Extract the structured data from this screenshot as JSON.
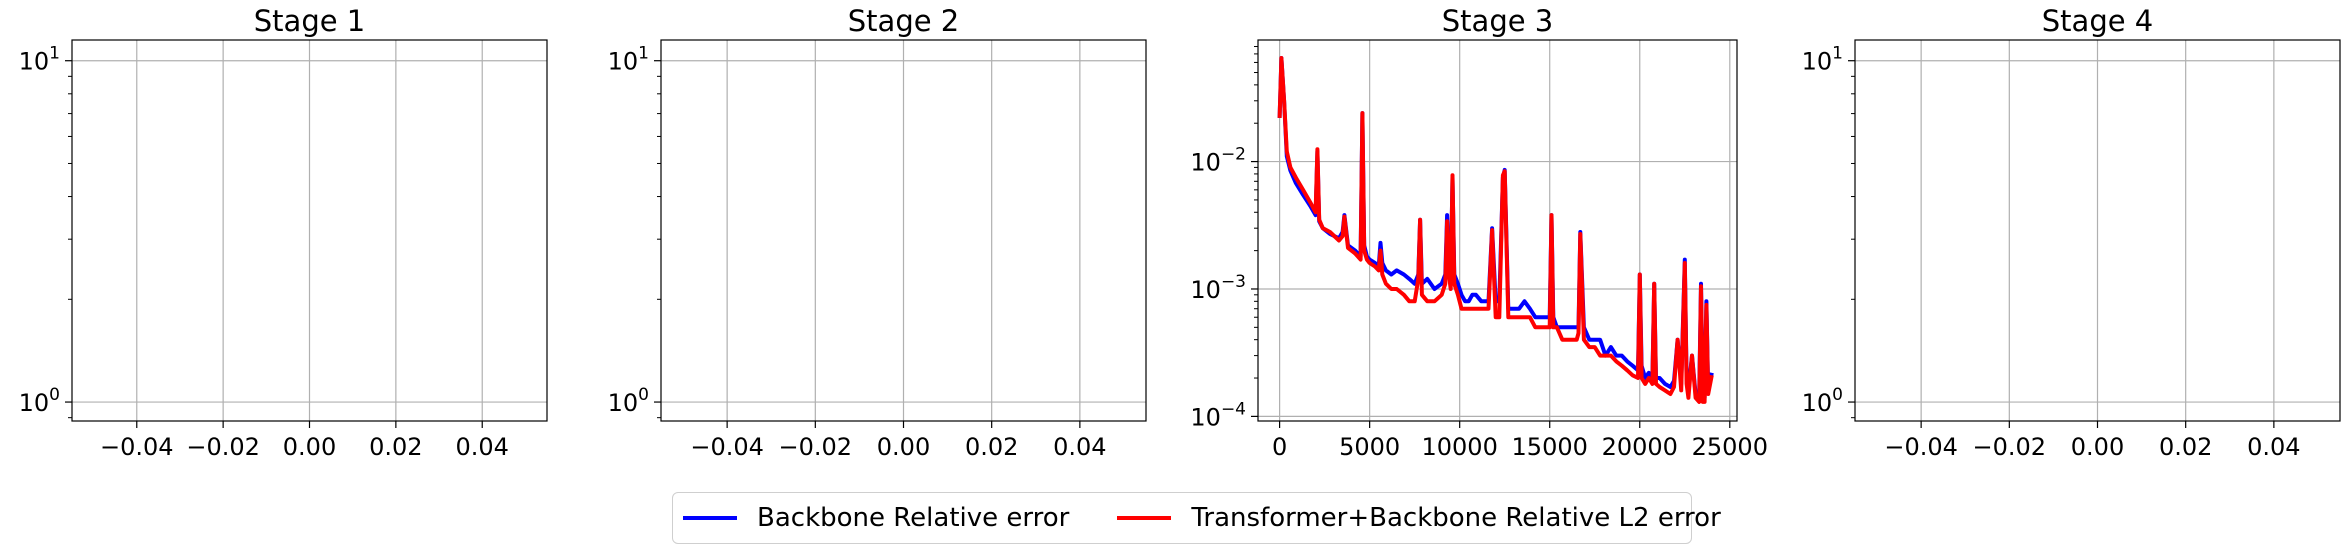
{
  "chart_data": [
    {
      "type": "line",
      "title": "Stage 1",
      "y_scale": "log",
      "ylim": [
        0.88,
        11.5
      ],
      "y_ticks": [
        {
          "value": 1,
          "label": "10^0"
        },
        {
          "value": 10,
          "label": "10^1"
        }
      ],
      "xlim": [
        -0.055,
        0.055
      ],
      "x_ticks": [
        {
          "value": -0.04,
          "label": "−0.04"
        },
        {
          "value": -0.02,
          "label": "−0.02"
        },
        {
          "value": 0,
          "label": "0.00"
        },
        {
          "value": 0.02,
          "label": "0.02"
        },
        {
          "value": 0.04,
          "label": "0.04"
        }
      ],
      "grid": true,
      "series": []
    },
    {
      "type": "line",
      "title": "Stage 2",
      "y_scale": "log",
      "ylim": [
        0.88,
        11.5
      ],
      "y_ticks": [
        {
          "value": 1,
          "label": "10^0"
        },
        {
          "value": 10,
          "label": "10^1"
        }
      ],
      "xlim": [
        -0.055,
        0.055
      ],
      "x_ticks": [
        {
          "value": -0.04,
          "label": "−0.04"
        },
        {
          "value": -0.02,
          "label": "−0.02"
        },
        {
          "value": 0,
          "label": "0.00"
        },
        {
          "value": 0.02,
          "label": "0.02"
        },
        {
          "value": 0.04,
          "label": "0.04"
        }
      ],
      "grid": true,
      "series": []
    },
    {
      "type": "line",
      "title": "Stage 3",
      "y_scale": "log",
      "ylim": [
        9.2e-05,
        0.09
      ],
      "y_ticks": [
        {
          "value": 0.0001,
          "label": "10^−4"
        },
        {
          "value": 0.001,
          "label": "10^−3"
        },
        {
          "value": 0.01,
          "label": "10^−2"
        }
      ],
      "xlim": [
        -1200,
        25400
      ],
      "x_ticks": [
        {
          "value": 0,
          "label": "0"
        },
        {
          "value": 5000,
          "label": "5000"
        },
        {
          "value": 10000,
          "label": "10000"
        },
        {
          "value": 15000,
          "label": "15000"
        },
        {
          "value": 20000,
          "label": "20000"
        },
        {
          "value": 25000,
          "label": "25000"
        }
      ],
      "grid": true,
      "series": [
        {
          "name": "Backbone Relative error",
          "color": "#0000ff",
          "x": [
            0,
            100,
            250,
            400,
            600,
            900,
            1300,
            1700,
            2000,
            2100,
            2200,
            2400,
            2800,
            3300,
            3500,
            3600,
            3800,
            4200,
            4500,
            4600,
            4700,
            4850,
            5000,
            5300,
            5500,
            5600,
            5700,
            5900,
            6200,
            6500,
            6900,
            7200,
            7500,
            7700,
            7800,
            7900,
            8200,
            8600,
            9000,
            9200,
            9300,
            9400,
            9500,
            9600,
            9700,
            9900,
            10100,
            10300,
            10500,
            10700,
            10900,
            11200,
            11400,
            11600,
            11800,
            12000,
            12200,
            12400,
            12500,
            12700,
            13000,
            13300,
            13600,
            13900,
            14200,
            14500,
            14800,
            15000,
            15100,
            15200,
            15400,
            15700,
            16000,
            16300,
            16500,
            16600,
            16700,
            16900,
            17200,
            17500,
            17800,
            18100,
            18400,
            18700,
            19000,
            19300,
            19600,
            19900,
            20000,
            20100,
            20300,
            20500,
            20700,
            20800,
            20900,
            21100,
            21400,
            21700,
            21900,
            22100,
            22300,
            22500,
            22600,
            22700,
            22900,
            23100,
            23300,
            23400,
            23500,
            23600,
            23700,
            23800,
            24000
          ],
          "values": [
            0.022,
            0.065,
            0.03,
            0.011,
            0.0085,
            0.0068,
            0.0055,
            0.0045,
            0.0038,
            0.012,
            0.0034,
            0.003,
            0.0027,
            0.0025,
            0.0028,
            0.0038,
            0.0022,
            0.002,
            0.0018,
            0.024,
            0.0022,
            0.0018,
            0.0017,
            0.0016,
            0.0015,
            0.0023,
            0.0016,
            0.0014,
            0.0013,
            0.0014,
            0.0013,
            0.0012,
            0.0011,
            0.0013,
            0.0035,
            0.0011,
            0.0012,
            0.001,
            0.0011,
            0.0013,
            0.0038,
            0.0015,
            0.0012,
            0.0075,
            0.0013,
            0.0011,
            0.0009,
            0.0008,
            0.0008,
            0.0009,
            0.0009,
            0.0008,
            0.0008,
            0.0008,
            0.003,
            0.0008,
            0.0008,
            0.0075,
            0.0086,
            0.0007,
            0.0007,
            0.0007,
            0.0008,
            0.0007,
            0.0006,
            0.0006,
            0.0006,
            0.0006,
            0.0038,
            0.0006,
            0.0005,
            0.0005,
            0.0005,
            0.0005,
            0.0005,
            0.0005,
            0.0028,
            0.0005,
            0.0004,
            0.0004,
            0.0004,
            0.0003,
            0.00035,
            0.0003,
            0.0003,
            0.00027,
            0.00025,
            0.00023,
            0.0013,
            0.00025,
            0.0002,
            0.00022,
            0.0002,
            0.0011,
            0.0002,
            0.0002,
            0.00018,
            0.00017,
            0.00019,
            0.0004,
            0.00018,
            0.0017,
            0.0002,
            0.00016,
            0.0003,
            0.00015,
            0.00015,
            0.0011,
            0.00015,
            0.00014,
            0.0008,
            0.00016,
            0.00022
          ]
        },
        {
          "name": "Transformer+Backbone Relative L2 error",
          "color": "#ff0000",
          "x": [
            0,
            100,
            250,
            400,
            600,
            900,
            1300,
            1700,
            2000,
            2100,
            2200,
            2400,
            2800,
            3300,
            3500,
            3600,
            3800,
            4200,
            4500,
            4600,
            4700,
            4850,
            5000,
            5300,
            5500,
            5600,
            5700,
            5900,
            6200,
            6500,
            6900,
            7200,
            7500,
            7700,
            7800,
            7900,
            8200,
            8600,
            9000,
            9200,
            9300,
            9400,
            9500,
            9600,
            9700,
            9900,
            10100,
            10300,
            10500,
            10700,
            10900,
            11200,
            11400,
            11600,
            11800,
            12000,
            12200,
            12400,
            12500,
            12700,
            13000,
            13300,
            13600,
            13900,
            14200,
            14500,
            14800,
            15000,
            15100,
            15200,
            15400,
            15700,
            16000,
            16300,
            16500,
            16600,
            16700,
            16900,
            17200,
            17500,
            17800,
            18100,
            18400,
            18700,
            19000,
            19300,
            19600,
            19900,
            20000,
            20100,
            20300,
            20500,
            20700,
            20800,
            20900,
            21100,
            21400,
            21700,
            21900,
            22100,
            22300,
            22500,
            22600,
            22700,
            22900,
            23100,
            23300,
            23400,
            23500,
            23600,
            23700,
            23800,
            24000
          ],
          "values": [
            0.022,
            0.065,
            0.03,
            0.012,
            0.009,
            0.0075,
            0.006,
            0.0048,
            0.004,
            0.0125,
            0.0035,
            0.003,
            0.0028,
            0.0024,
            0.0026,
            0.0037,
            0.0021,
            0.0019,
            0.0017,
            0.024,
            0.002,
            0.0017,
            0.0016,
            0.0015,
            0.0014,
            0.002,
            0.0013,
            0.0011,
            0.001,
            0.001,
            0.0009,
            0.0008,
            0.0008,
            0.0012,
            0.0035,
            0.0009,
            0.0008,
            0.0008,
            0.0009,
            0.0011,
            0.0034,
            0.0013,
            0.001,
            0.0078,
            0.0011,
            0.0009,
            0.0007,
            0.0007,
            0.0007,
            0.0007,
            0.0007,
            0.0007,
            0.0007,
            0.0007,
            0.0029,
            0.0006,
            0.0006,
            0.0078,
            0.0084,
            0.0006,
            0.0006,
            0.0006,
            0.0006,
            0.0006,
            0.0005,
            0.0005,
            0.0005,
            0.0005,
            0.0038,
            0.0005,
            0.0005,
            0.0004,
            0.0004,
            0.0004,
            0.0004,
            0.00045,
            0.0027,
            0.0004,
            0.00035,
            0.00035,
            0.0003,
            0.0003,
            0.0003,
            0.00027,
            0.00025,
            0.00023,
            0.00021,
            0.0002,
            0.0013,
            0.0002,
            0.00018,
            0.0002,
            0.00018,
            0.0011,
            0.00018,
            0.00017,
            0.00016,
            0.00015,
            0.00017,
            0.0004,
            0.00016,
            0.0016,
            0.00018,
            0.00014,
            0.0003,
            0.00014,
            0.00013,
            0.00105,
            0.00013,
            0.00013,
            0.00075,
            0.00015,
            0.00021
          ]
        }
      ]
    },
    {
      "type": "line",
      "title": "Stage 4",
      "y_scale": "log",
      "ylim": [
        0.88,
        11.5
      ],
      "y_ticks": [
        {
          "value": 1,
          "label": "10^0"
        },
        {
          "value": 10,
          "label": "10^1"
        }
      ],
      "xlim": [
        -0.055,
        0.055
      ],
      "x_ticks": [
        {
          "value": -0.04,
          "label": "−0.04"
        },
        {
          "value": -0.02,
          "label": "−0.02"
        },
        {
          "value": 0,
          "label": "0.00"
        },
        {
          "value": 0.02,
          "label": "0.02"
        },
        {
          "value": 0.04,
          "label": "0.04"
        }
      ],
      "grid": true,
      "series": []
    }
  ],
  "legend": {
    "placement": "bottom-center",
    "items": [
      {
        "label": "Backbone Relative error",
        "color": "#0000ff"
      },
      {
        "label": "Transformer+Backbone Relative L2 error",
        "color": "#ff0000"
      }
    ]
  }
}
